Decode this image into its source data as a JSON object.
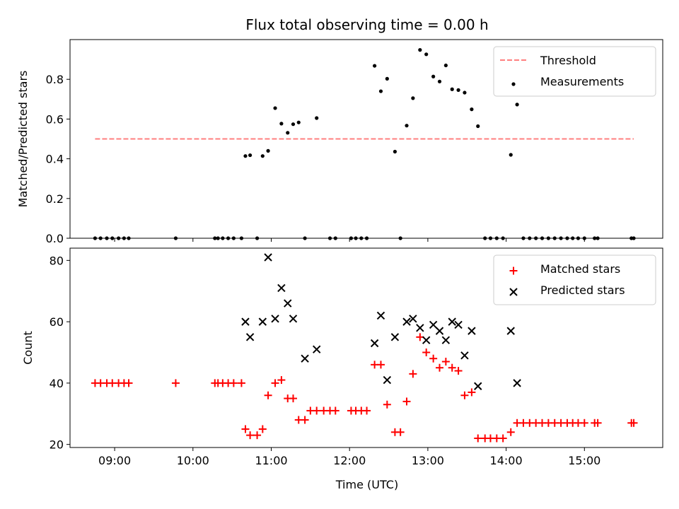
{
  "title": "Flux total observing time = 0.00 h",
  "x_axis": {
    "label": "Time (UTC)",
    "tick_values": [
      9,
      10,
      11,
      12,
      13,
      14,
      15
    ],
    "tick_labels": [
      "09:00",
      "10:00",
      "11:00",
      "12:00",
      "13:00",
      "14:00",
      "15:00"
    ],
    "xlim": [
      8.43,
      16.0
    ]
  },
  "chart_data": [
    {
      "type": "scatter",
      "ylabel": "Matched/Predicted stars",
      "ylim": [
        0,
        1.0
      ],
      "yticks": [
        0.0,
        0.2,
        0.4,
        0.6,
        0.8
      ],
      "ytick_labels": [
        "0.0",
        "0.2",
        "0.4",
        "0.6",
        "0.8"
      ],
      "legend_position": "upper right",
      "threshold": {
        "name": "Threshold",
        "value": 0.5,
        "x_range": [
          8.75,
          15.63
        ],
        "color": "#ff7f7f",
        "style": "dashed"
      },
      "series": [
        {
          "name": "Measurements",
          "color": "#000000",
          "x": [
            8.75,
            8.82,
            8.9,
            8.97,
            9.05,
            9.12,
            9.18,
            9.78,
            10.28,
            10.32,
            10.38,
            10.45,
            10.52,
            10.62,
            10.67,
            10.73,
            10.82,
            10.89,
            10.96,
            11.05,
            11.13,
            11.21,
            11.28,
            11.35,
            11.43,
            11.58,
            11.75,
            11.82,
            12.02,
            12.08,
            12.15,
            12.22,
            12.32,
            12.4,
            12.48,
            12.58,
            12.65,
            12.73,
            12.81,
            12.9,
            12.98,
            13.07,
            13.15,
            13.23,
            13.31,
            13.39,
            13.47,
            13.56,
            13.64,
            13.73,
            13.8,
            13.88,
            13.96,
            14.06,
            14.14,
            14.22,
            14.3,
            14.38,
            14.46,
            14.54,
            14.62,
            14.7,
            14.78,
            14.85,
            14.92,
            15.0,
            15.13,
            15.17,
            15.6,
            15.63
          ],
          "y": [
            0.0,
            0.0,
            0.0,
            0.0,
            0.0,
            0.0,
            0.0,
            0.0,
            0.0,
            0.0,
            0.0,
            0.0,
            0.0,
            0.0,
            0.414,
            0.418,
            0.0,
            0.414,
            0.44,
            0.655,
            0.577,
            0.531,
            0.574,
            0.583,
            0.0,
            0.605,
            0.0,
            0.0,
            0.0,
            0.0,
            0.0,
            0.0,
            0.868,
            0.74,
            0.803,
            0.436,
            0.0,
            0.567,
            0.705,
            0.948,
            0.926,
            0.814,
            0.789,
            0.87,
            0.75,
            0.746,
            0.733,
            0.649,
            0.564,
            0.0,
            0.0,
            0.0,
            0.0,
            0.42,
            0.673,
            0.0,
            0.0,
            0.0,
            0.0,
            0.0,
            0.0,
            0.0,
            0.0,
            0.0,
            0.0,
            0.0,
            0.0,
            0.0,
            0.0,
            0.0
          ]
        }
      ]
    },
    {
      "type": "scatter",
      "ylabel": "Count",
      "ylim": [
        19,
        84
      ],
      "yticks": [
        20,
        40,
        60,
        80
      ],
      "ytick_labels": [
        "20",
        "40",
        "60",
        "80"
      ],
      "legend_position": "upper right",
      "series": [
        {
          "name": "Matched stars",
          "marker": "plus",
          "color": "#ff0000",
          "x": [
            8.75,
            8.82,
            8.9,
            8.97,
            9.05,
            9.12,
            9.18,
            9.78,
            10.28,
            10.32,
            10.38,
            10.45,
            10.52,
            10.62,
            10.67,
            10.73,
            10.82,
            10.89,
            10.96,
            11.05,
            11.13,
            11.21,
            11.28,
            11.35,
            11.43,
            11.5,
            11.58,
            11.67,
            11.75,
            11.82,
            12.02,
            12.08,
            12.15,
            12.22,
            12.32,
            12.4,
            12.48,
            12.58,
            12.65,
            12.73,
            12.81,
            12.9,
            12.98,
            13.07,
            13.15,
            13.23,
            13.31,
            13.39,
            13.47,
            13.56,
            13.64,
            13.73,
            13.8,
            13.88,
            13.96,
            14.06,
            14.14,
            14.22,
            14.3,
            14.38,
            14.46,
            14.54,
            14.62,
            14.7,
            14.78,
            14.85,
            14.92,
            15.0,
            15.13,
            15.17,
            15.6,
            15.63
          ],
          "y": [
            40,
            40,
            40,
            40,
            40,
            40,
            40,
            40,
            40,
            40,
            40,
            40,
            40,
            40,
            25,
            23,
            23,
            25,
            36,
            40,
            41,
            35,
            35,
            28,
            28,
            31,
            31,
            31,
            31,
            31,
            31,
            31,
            31,
            31,
            46,
            46,
            33,
            24,
            24,
            34,
            43,
            55,
            50,
            48,
            45,
            47,
            45,
            44,
            36,
            37,
            22,
            22,
            22,
            22,
            22,
            24,
            27,
            27,
            27,
            27,
            27,
            27,
            27,
            27,
            27,
            27,
            27,
            27,
            27,
            27,
            27,
            27
          ]
        },
        {
          "name": "Predicted stars",
          "marker": "x",
          "color": "#000000",
          "x": [
            10.67,
            10.73,
            10.89,
            10.96,
            11.05,
            11.13,
            11.21,
            11.28,
            11.43,
            11.58,
            12.32,
            12.4,
            12.48,
            12.58,
            12.73,
            12.81,
            12.9,
            12.98,
            13.07,
            13.15,
            13.23,
            13.31,
            13.39,
            13.47,
            13.56,
            13.64,
            14.06,
            14.14
          ],
          "y": [
            60,
            55,
            60,
            81,
            61,
            71,
            66,
            61,
            48,
            51,
            53,
            62,
            41,
            55,
            60,
            61,
            58,
            54,
            59,
            57,
            54,
            60,
            59,
            49,
            57,
            39,
            57,
            40
          ]
        }
      ]
    }
  ]
}
